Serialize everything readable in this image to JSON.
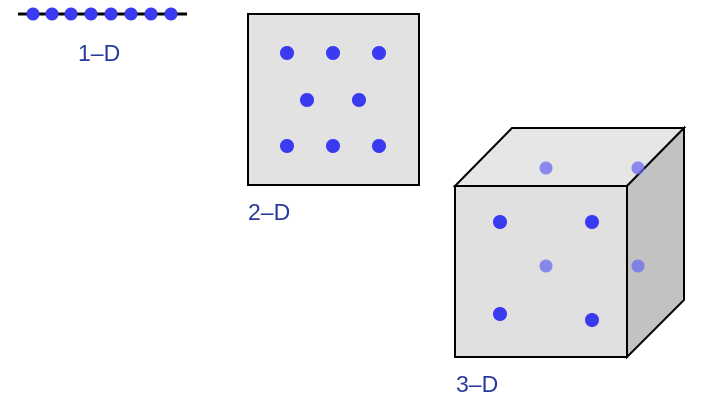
{
  "panels": [
    {
      "label": "1–D"
    },
    {
      "label": "2–D"
    },
    {
      "label": "3–D"
    }
  ]
}
